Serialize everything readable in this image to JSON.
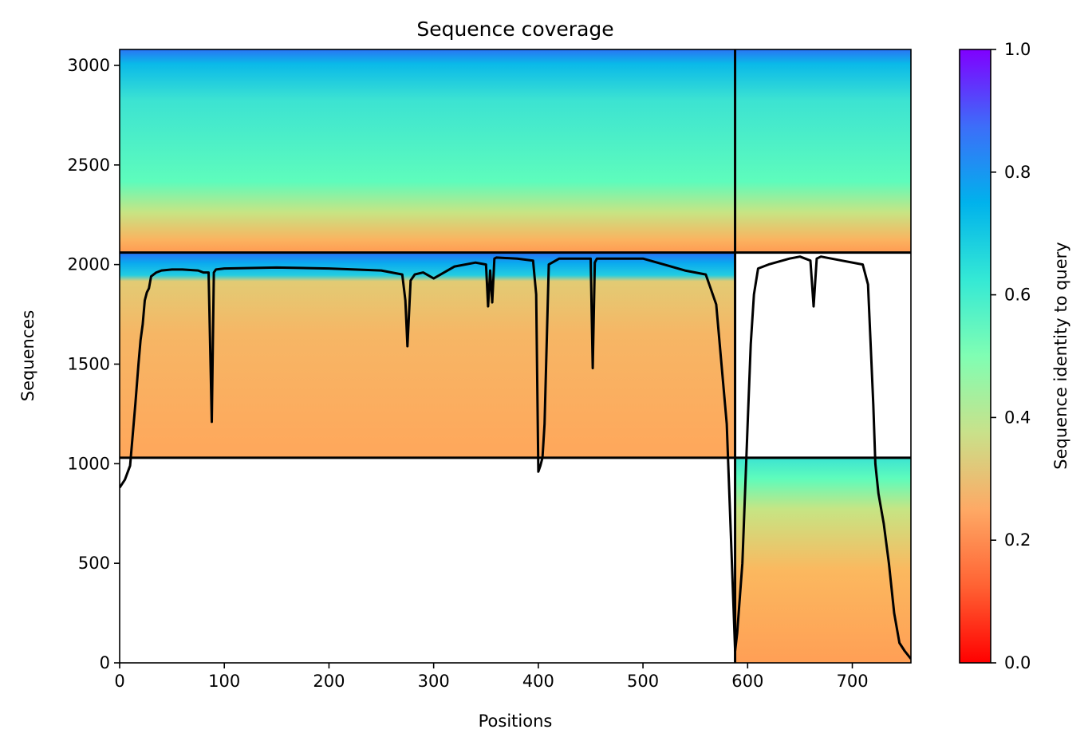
{
  "chart_data": {
    "type": "heatmap",
    "title": "Sequence coverage",
    "xlabel": "Positions",
    "ylabel": "Sequences",
    "xlim": [
      0,
      756
    ],
    "ylim": [
      0,
      3080
    ],
    "x_ticks": [
      "0",
      "100",
      "200",
      "300",
      "400",
      "500",
      "600",
      "700"
    ],
    "y_ticks": [
      "0",
      "500",
      "1000",
      "1500",
      "2000",
      "2500",
      "3000"
    ],
    "colorbar": {
      "label": "Sequence identity to query",
      "range": [
        0,
        1
      ],
      "ticks": [
        "0.0",
        "0.2",
        "0.4",
        "0.6",
        "0.8",
        "1.0"
      ],
      "colormap": "rainbow"
    },
    "divider_lines": {
      "vertical_x": 588,
      "horizontal_y": [
        1030,
        2060
      ]
    },
    "blocks": [
      {
        "x_range": [
          0,
          588
        ],
        "y_range": [
          2060,
          3080
        ],
        "identity_bottom": 0.22,
        "identity_top": 0.82
      },
      {
        "x_range": [
          588,
          756
        ],
        "y_range": [
          2060,
          3080
        ],
        "identity_bottom": 0.22,
        "identity_top": 0.82
      },
      {
        "x_range": [
          0,
          588
        ],
        "y_range": [
          1030,
          2060
        ],
        "identity_bottom": 0.25,
        "identity_top": 0.78
      },
      {
        "x_range": [
          588,
          756
        ],
        "y_range": [
          0,
          1030
        ],
        "identity_bottom": 0.25,
        "identity_top": 0.65
      }
    ],
    "coverage_line": {
      "x": [
        0,
        5,
        10,
        15,
        18,
        20,
        22,
        24,
        26,
        28,
        30,
        35,
        40,
        50,
        60,
        75,
        80,
        85,
        88,
        90,
        92,
        100,
        150,
        200,
        250,
        270,
        273,
        275,
        278,
        282,
        290,
        300,
        320,
        340,
        350,
        352,
        354,
        356,
        358,
        360,
        380,
        395,
        398,
        400,
        402,
        404,
        406,
        410,
        420,
        450,
        452,
        454,
        456,
        460,
        500,
        520,
        540,
        560,
        570,
        575,
        580,
        585,
        588,
        590,
        595,
        600,
        603,
        606,
        610,
        620,
        640,
        650,
        660,
        663,
        666,
        670,
        690,
        710,
        715,
        720,
        722,
        725,
        730,
        735,
        740,
        745,
        750,
        756
      ],
      "y": [
        880,
        920,
        990,
        1300,
        1500,
        1620,
        1700,
        1820,
        1860,
        1880,
        1940,
        1960,
        1970,
        1975,
        1975,
        1970,
        1960,
        1960,
        1210,
        1960,
        1975,
        1980,
        1985,
        1980,
        1970,
        1950,
        1820,
        1590,
        1920,
        1950,
        1960,
        1930,
        1990,
        2010,
        2000,
        1790,
        1970,
        1810,
        2030,
        2035,
        2030,
        2020,
        1850,
        960,
        990,
        1030,
        1200,
        2000,
        2030,
        2030,
        1480,
        2010,
        2030,
        2030,
        2030,
        2000,
        1970,
        1950,
        1800,
        1500,
        1200,
        500,
        60,
        150,
        500,
        1200,
        1600,
        1850,
        1980,
        2000,
        2030,
        2040,
        2020,
        1790,
        2030,
        2040,
        2020,
        2000,
        1900,
        1300,
        1000,
        850,
        700,
        500,
        250,
        100,
        60,
        20
      ]
    }
  }
}
